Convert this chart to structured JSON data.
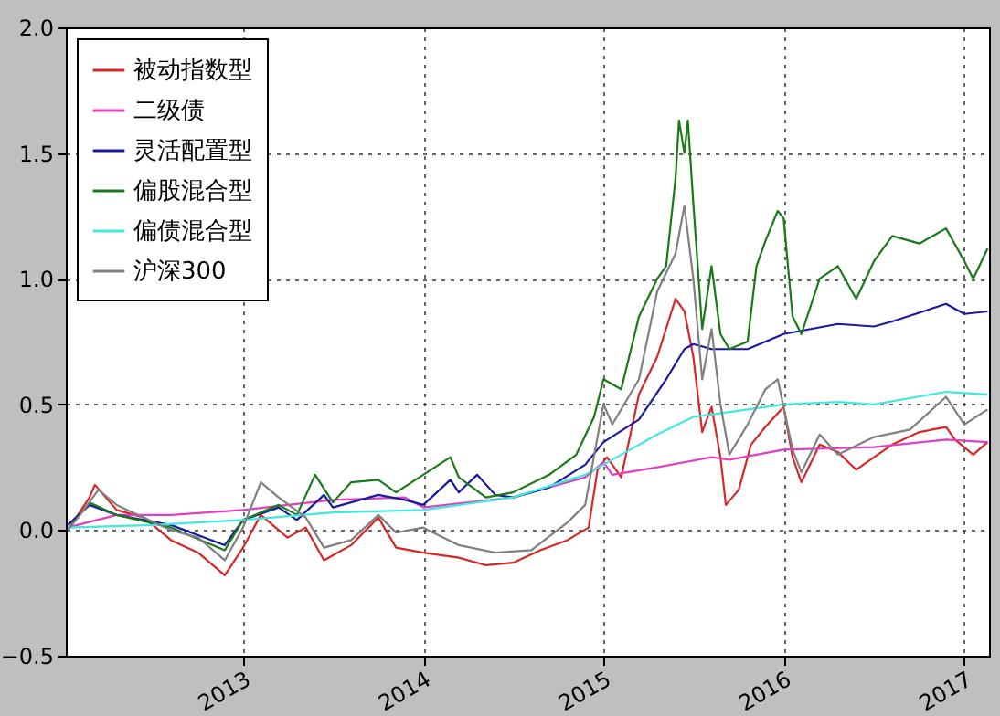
{
  "chart_data": {
    "type": "line",
    "legend": "top left",
    "grid": true,
    "line_style": "solid",
    "marker": "none",
    "xlim": [
      "2012-01-08",
      "2017-02-20"
    ],
    "xticks": [
      "2013",
      "2014",
      "2015",
      "2016",
      "2017"
    ],
    "ylim": [
      -0.5,
      2.0
    ],
    "yticks": [
      {
        "value": -0.5,
        "label": "−0.5"
      },
      {
        "value": 0,
        "label": "0.0"
      },
      {
        "value": 0.5,
        "label": "0.5"
      },
      {
        "value": 1,
        "label": "1.0"
      },
      {
        "value": 1.5,
        "label": "1.5"
      },
      {
        "value": 2,
        "label": "2.0"
      }
    ],
    "series": [
      {
        "name": "被动指数型",
        "color": "#d62728",
        "x": [
          "2012-01-12",
          "2012-02-25",
          "2012-03-07",
          "2012-04-20",
          "2012-06-14",
          "2012-08-08",
          "2012-10-02",
          "2012-11-25",
          "2013-01-01",
          "2013-02-06",
          "2013-04-01",
          "2013-05-08",
          "2013-06-14",
          "2013-08-08",
          "2013-10-02",
          "2013-11-07",
          "2014-01-01",
          "2014-03-14",
          "2014-05-08",
          "2014-07-02",
          "2014-08-26",
          "2014-10-20",
          "2014-12-02",
          "2014-12-20",
          "2015-01-08",
          "2015-02-06",
          "2015-03-14",
          "2015-04-20",
          "2015-05-27",
          "2015-06-14",
          "2015-07-02",
          "2015-07-20",
          "2015-08-08",
          "2015-08-26",
          "2015-09-06",
          "2015-10-02",
          "2015-10-27",
          "2015-11-25",
          "2016-01-01",
          "2016-01-19",
          "2016-02-06",
          "2016-03-14",
          "2016-04-20",
          "2016-05-27",
          "2016-07-02",
          "2016-08-08",
          "2016-10-02",
          "2016-11-25",
          "2016-12-13",
          "2017-01-19",
          "2017-02-17"
        ],
        "values": [
          0.0,
          0.13,
          0.18,
          0.08,
          0.05,
          -0.04,
          -0.09,
          -0.18,
          -0.07,
          0.06,
          -0.03,
          0.01,
          -0.12,
          -0.06,
          0.05,
          -0.07,
          -0.09,
          -0.11,
          -0.14,
          -0.13,
          -0.08,
          -0.04,
          0.01,
          0.24,
          0.29,
          0.21,
          0.54,
          0.69,
          0.92,
          0.87,
          0.69,
          0.39,
          0.49,
          0.29,
          0.1,
          0.16,
          0.34,
          0.41,
          0.49,
          0.29,
          0.19,
          0.34,
          0.31,
          0.24,
          0.29,
          0.34,
          0.39,
          0.41,
          0.36,
          0.3,
          0.35
        ]
      },
      {
        "name": "二级债",
        "color": "#e040c0",
        "x": [
          "2012-01-12",
          "2012-04-20",
          "2012-08-08",
          "2013-01-01",
          "2013-07-02",
          "2013-11-25",
          "2014-01-01",
          "2014-07-02",
          "2014-11-25",
          "2015-01-01",
          "2015-01-19",
          "2015-04-20",
          "2015-08-08",
          "2015-09-13",
          "2016-01-01",
          "2016-07-02",
          "2016-11-25",
          "2017-02-17"
        ],
        "values": [
          0.01,
          0.06,
          0.06,
          0.08,
          0.12,
          0.13,
          0.09,
          0.13,
          0.21,
          0.27,
          0.22,
          0.25,
          0.29,
          0.28,
          0.32,
          0.33,
          0.36,
          0.35
        ]
      },
      {
        "name": "灵活配置型",
        "color": "#1a1aa0",
        "x": [
          "2012-01-12",
          "2012-02-25",
          "2012-04-20",
          "2012-08-08",
          "2012-11-25",
          "2013-01-01",
          "2013-03-14",
          "2013-04-20",
          "2013-06-14",
          "2013-07-02",
          "2013-10-02",
          "2013-11-25",
          "2014-01-01",
          "2014-02-25",
          "2014-03-14",
          "2014-04-20",
          "2014-05-27",
          "2014-07-02",
          "2014-09-13",
          "2014-11-25",
          "2015-01-01",
          "2015-03-14",
          "2015-05-08",
          "2015-06-14",
          "2015-07-02",
          "2015-08-08",
          "2015-10-20",
          "2016-01-01",
          "2016-04-20",
          "2016-07-02",
          "2016-08-08",
          "2016-11-25",
          "2017-01-01",
          "2017-02-17"
        ],
        "values": [
          0.02,
          0.1,
          0.06,
          0.02,
          -0.06,
          0.04,
          0.09,
          0.04,
          0.14,
          0.09,
          0.14,
          0.12,
          0.1,
          0.2,
          0.15,
          0.22,
          0.14,
          0.13,
          0.17,
          0.26,
          0.35,
          0.44,
          0.6,
          0.72,
          0.74,
          0.72,
          0.72,
          0.78,
          0.82,
          0.81,
          0.83,
          0.9,
          0.86,
          0.87
        ]
      },
      {
        "name": "偏股混合型",
        "color": "#1a7a1a",
        "x": [
          "2012-01-12",
          "2012-02-25",
          "2012-04-20",
          "2012-08-08",
          "2012-11-25",
          "2013-01-01",
          "2013-03-14",
          "2013-04-20",
          "2013-05-27",
          "2013-07-02",
          "2013-08-08",
          "2013-10-02",
          "2013-11-07",
          "2014-01-01",
          "2014-02-25",
          "2014-03-14",
          "2014-05-08",
          "2014-07-02",
          "2014-09-13",
          "2014-11-07",
          "2014-12-13",
          "2015-01-01",
          "2015-02-06",
          "2015-03-14",
          "2015-04-20",
          "2015-05-08",
          "2015-05-27",
          "2015-06-03",
          "2015-06-14",
          "2015-06-21",
          "2015-07-02",
          "2015-07-20",
          "2015-08-08",
          "2015-08-26",
          "2015-09-13",
          "2015-10-20",
          "2015-11-07",
          "2015-11-25",
          "2015-12-20",
          "2016-01-01",
          "2016-01-19",
          "2016-02-06",
          "2016-03-14",
          "2016-04-20",
          "2016-05-27",
          "2016-07-02",
          "2016-08-08",
          "2016-10-02",
          "2016-11-25",
          "2017-01-01",
          "2017-01-19",
          "2017-02-17"
        ],
        "values": [
          0.0,
          0.11,
          0.06,
          0.01,
          -0.08,
          0.04,
          0.1,
          0.06,
          0.22,
          0.11,
          0.19,
          0.2,
          0.15,
          0.22,
          0.29,
          0.21,
          0.13,
          0.15,
          0.22,
          0.3,
          0.45,
          0.6,
          0.56,
          0.85,
          1.0,
          1.05,
          1.4,
          1.63,
          1.5,
          1.63,
          1.3,
          0.8,
          1.05,
          0.78,
          0.72,
          0.75,
          1.05,
          1.15,
          1.27,
          1.24,
          0.85,
          0.78,
          1.0,
          1.05,
          0.92,
          1.07,
          1.17,
          1.14,
          1.2,
          1.07,
          1.0,
          1.12
        ]
      },
      {
        "name": "偏债混合型",
        "color": "#40e8e0",
        "x": [
          "2012-01-12",
          "2012-07-02",
          "2013-01-01",
          "2013-07-02",
          "2014-01-01",
          "2014-07-02",
          "2014-11-25",
          "2015-02-06",
          "2015-04-20",
          "2015-07-02",
          "2015-10-20",
          "2016-01-01",
          "2016-04-20",
          "2016-07-02",
          "2016-11-25",
          "2017-02-17"
        ],
        "values": [
          0.01,
          0.02,
          0.04,
          0.07,
          0.08,
          0.13,
          0.22,
          0.3,
          0.38,
          0.45,
          0.48,
          0.5,
          0.51,
          0.5,
          0.55,
          0.54
        ]
      },
      {
        "name": "沪深300",
        "color": "#808080",
        "x": [
          "2012-01-12",
          "2012-02-06",
          "2012-03-14",
          "2012-04-20",
          "2012-06-14",
          "2012-08-08",
          "2012-10-02",
          "2012-11-25",
          "2013-01-01",
          "2013-02-06",
          "2013-03-14",
          "2013-05-08",
          "2013-06-14",
          "2013-08-08",
          "2013-10-02",
          "2013-11-07",
          "2014-01-01",
          "2014-03-14",
          "2014-05-27",
          "2014-08-08",
          "2014-10-20",
          "2014-11-25",
          "2015-01-01",
          "2015-01-19",
          "2015-03-14",
          "2015-04-20",
          "2015-05-27",
          "2015-06-14",
          "2015-07-02",
          "2015-07-20",
          "2015-08-08",
          "2015-08-26",
          "2015-09-13",
          "2015-10-20",
          "2015-11-25",
          "2015-12-20",
          "2016-01-19",
          "2016-02-06",
          "2016-03-14",
          "2016-04-20",
          "2016-07-02",
          "2016-09-13",
          "2016-11-25",
          "2017-01-01",
          "2017-02-17"
        ],
        "values": [
          0.0,
          0.06,
          0.16,
          0.1,
          0.05,
          0.0,
          -0.03,
          -0.12,
          0.01,
          0.19,
          0.13,
          0.05,
          -0.07,
          -0.04,
          0.06,
          -0.01,
          0.01,
          -0.06,
          -0.09,
          -0.08,
          0.03,
          0.1,
          0.5,
          0.42,
          0.6,
          0.95,
          1.1,
          1.29,
          1.0,
          0.6,
          0.8,
          0.5,
          0.3,
          0.42,
          0.56,
          0.6,
          0.32,
          0.23,
          0.38,
          0.3,
          0.37,
          0.4,
          0.53,
          0.42,
          0.48
        ]
      }
    ]
  }
}
